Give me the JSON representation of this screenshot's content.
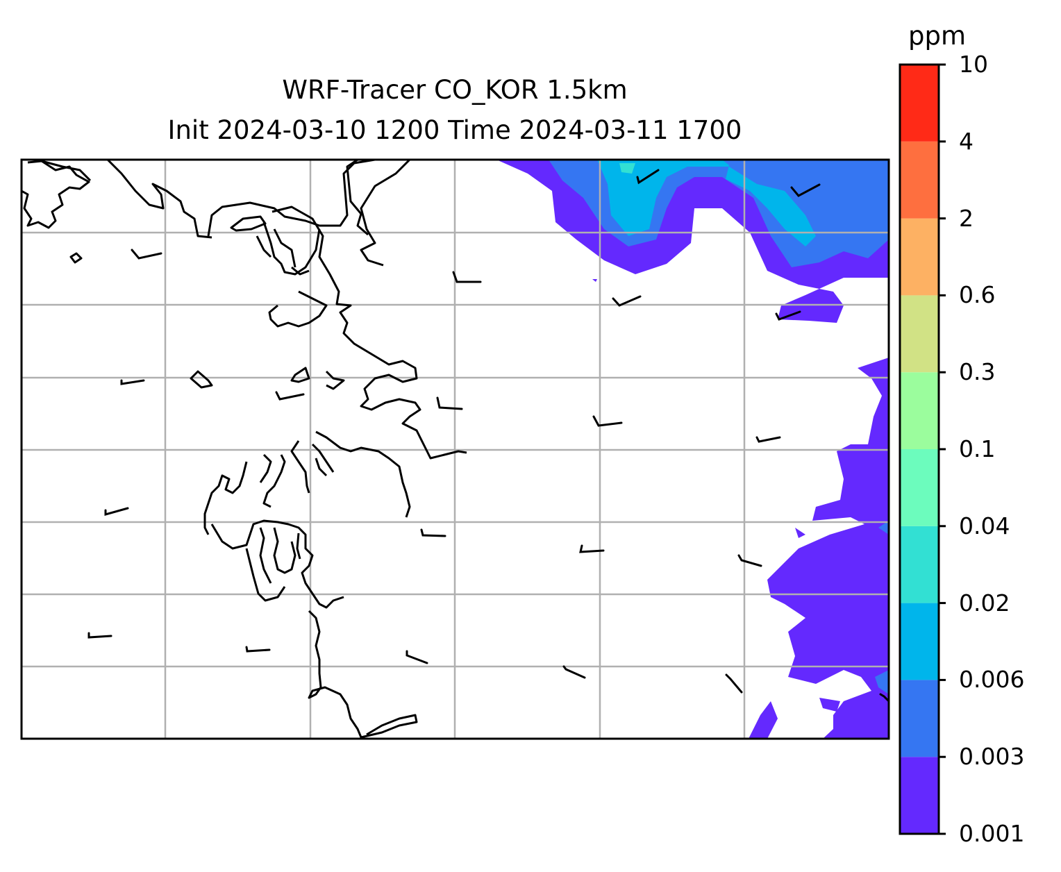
{
  "title_line1": "WRF-Tracer CO_KOR 1.5km",
  "title_line2": "Init 2024-03-10 1200 Time 2024-03-11 1700",
  "colorbar": {
    "unit": "ppm",
    "levels": [
      "0.001",
      "0.003",
      "0.006",
      "0.02",
      "0.04",
      "0.1",
      "0.3",
      "0.6",
      "2",
      "4",
      "10"
    ],
    "colors": [
      "#6429fe",
      "#3576f2",
      "#00b5eb",
      "#32e0d3",
      "#6cfcbd",
      "#9bfd9d",
      "#d1e285",
      "#fdb163",
      "#fe6f3f",
      "#ff2a17"
    ]
  },
  "chart_data": {
    "type": "heatmap",
    "title": "WRF-Tracer CO_KOR 1.5km / Init 2024-03-10 1200 Time 2024-03-11 1700",
    "colorbar_label": "ppm",
    "contour_levels": [
      0.001,
      0.003,
      0.006,
      0.02,
      0.04,
      0.1,
      0.3,
      0.6,
      2,
      4,
      10
    ],
    "grid": true,
    "overlay": [
      "coastlines",
      "wind barbs"
    ]
  }
}
